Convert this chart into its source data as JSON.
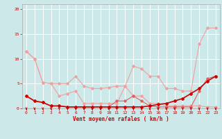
{
  "x": [
    0,
    1,
    2,
    3,
    4,
    5,
    6,
    7,
    8,
    9,
    10,
    11,
    12,
    13,
    14,
    15,
    16,
    17,
    18,
    19,
    20,
    21,
    22,
    23
  ],
  "series": [
    {
      "name": "line1_light",
      "color": "#f0a0a0",
      "linewidth": 0.8,
      "marker": "D",
      "markersize": 1.8,
      "y": [
        11.5,
        10.0,
        5.2,
        5.0,
        5.0,
        5.0,
        6.5,
        4.5,
        4.0,
        4.0,
        4.2,
        4.5,
        4.5,
        8.5,
        8.0,
        6.5,
        6.5,
        4.0,
        4.0,
        3.5,
        3.5,
        13.0,
        16.2,
        16.2
      ]
    },
    {
      "name": "line2_light",
      "color": "#f0a0a0",
      "linewidth": 0.8,
      "marker": "D",
      "markersize": 1.8,
      "y": [
        11.5,
        10.0,
        5.2,
        5.0,
        2.5,
        3.0,
        3.5,
        1.0,
        1.0,
        1.0,
        1.0,
        1.0,
        4.5,
        2.5,
        2.5,
        1.0,
        1.0,
        0.5,
        0.5,
        0.5,
        0.5,
        0.5,
        0.3,
        0.3
      ]
    },
    {
      "name": "line3_medium",
      "color": "#e06060",
      "linewidth": 0.8,
      "marker": "D",
      "markersize": 1.8,
      "y": [
        2.5,
        1.5,
        1.2,
        0.5,
        0.5,
        0.3,
        0.3,
        0.3,
        0.3,
        0.3,
        0.3,
        1.5,
        1.5,
        2.5,
        1.5,
        0.5,
        0.3,
        0.3,
        0.3,
        0.3,
        0.3,
        3.5,
        6.0,
        6.5
      ]
    },
    {
      "name": "line4_dark",
      "color": "#cc0000",
      "linewidth": 1.2,
      "marker": "D",
      "markersize": 2.0,
      "y": [
        2.5,
        1.5,
        1.2,
        0.5,
        0.5,
        0.3,
        0.3,
        0.3,
        0.3,
        0.3,
        0.3,
        0.3,
        0.3,
        0.3,
        0.3,
        0.5,
        0.8,
        1.0,
        1.5,
        2.0,
        3.0,
        4.0,
        5.5,
        6.5
      ]
    }
  ],
  "arrows_x": [
    0,
    1,
    2,
    3,
    4,
    5,
    6,
    7,
    8,
    9,
    10,
    11,
    12,
    13,
    14,
    15,
    16,
    17,
    18,
    19,
    20,
    21,
    22,
    23
  ],
  "xlabel": "Vent moyen/en rafales ( km/h )",
  "ylim": [
    0,
    21
  ],
  "xlim": [
    -0.5,
    23.5
  ],
  "yticks": [
    0,
    5,
    10,
    15,
    20
  ],
  "xticks": [
    0,
    1,
    2,
    3,
    4,
    5,
    6,
    7,
    8,
    9,
    10,
    11,
    12,
    13,
    14,
    15,
    16,
    17,
    18,
    19,
    20,
    21,
    22,
    23
  ],
  "bg_color": "#cce8e8",
  "grid_color": "#ffffff",
  "text_color": "#cc0000",
  "arrow_color": "#cc0000",
  "hline_color": "#cc0000"
}
